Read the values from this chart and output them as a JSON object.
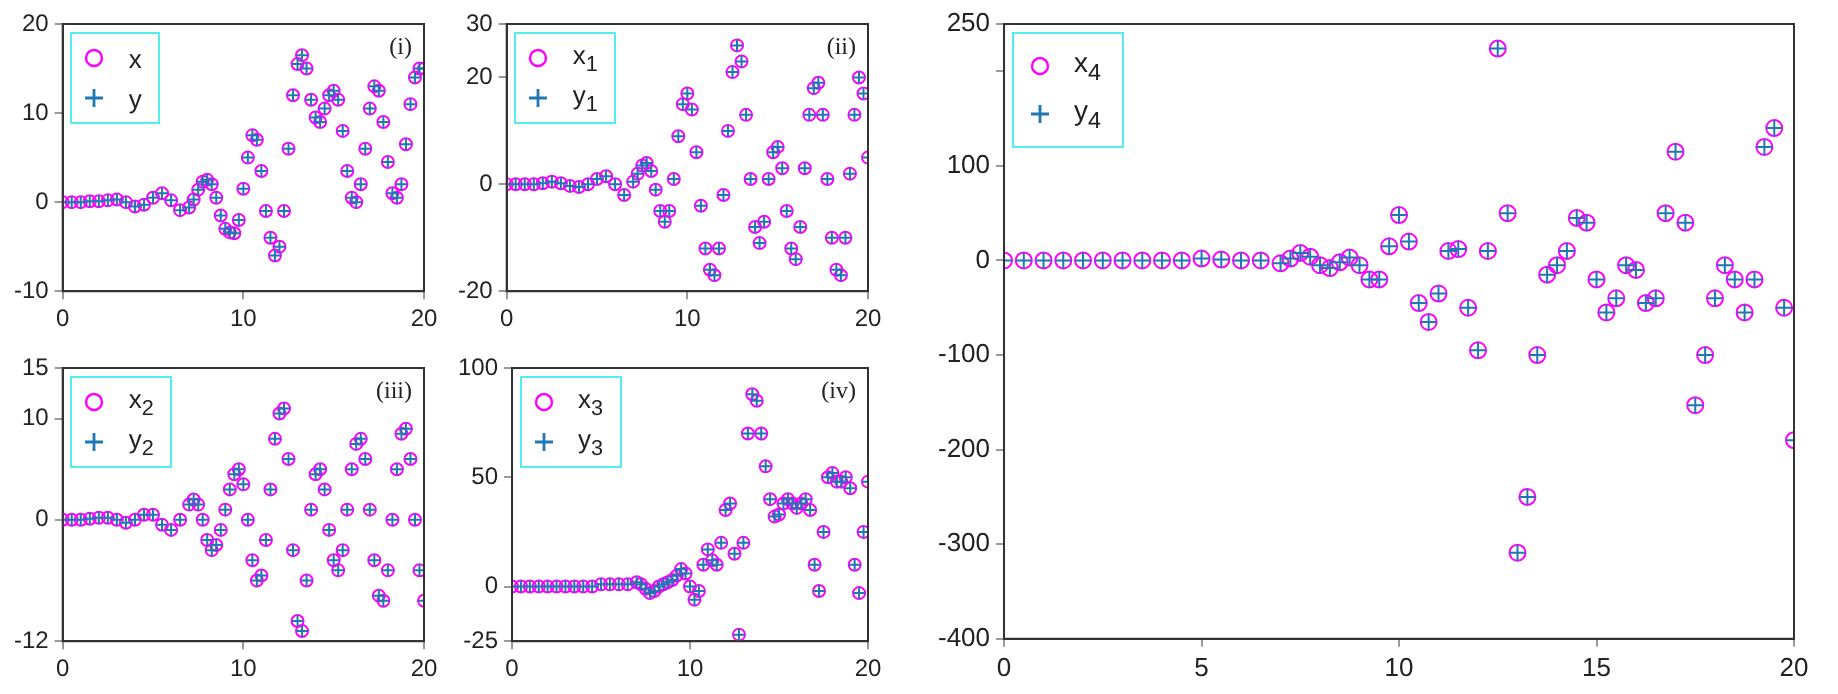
{
  "chart_data": [
    {
      "type": "scatter",
      "annotations": [
        "(i)"
      ],
      "legend": "top left",
      "grid": false,
      "xlim": [
        0,
        20
      ],
      "xticks": [
        0,
        10,
        20
      ],
      "ylim": [
        -10,
        20
      ],
      "yticks": [
        -10,
        0,
        10,
        20
      ],
      "x": [
        0,
        0.5,
        1,
        1.5,
        2,
        2.5,
        3,
        3.5,
        4,
        4.5,
        5,
        5.5,
        6,
        6.5,
        7,
        7.25,
        7.5,
        7.75,
        8,
        8.25,
        8.5,
        8.75,
        9,
        9.25,
        9.5,
        9.75,
        10,
        10.25,
        10.5,
        10.75,
        11,
        11.25,
        11.5,
        11.75,
        12,
        12.25,
        12.5,
        12.75,
        13,
        13.25,
        13.5,
        13.75,
        14,
        14.25,
        14.5,
        14.75,
        15,
        15.25,
        15.5,
        15.75,
        16,
        16.25,
        16.5,
        16.75,
        17,
        17.25,
        17.5,
        17.75,
        18,
        18.25,
        18.5,
        18.75,
        19,
        19.25,
        19.5,
        19.75,
        20
      ],
      "series": [
        {
          "name": "x",
          "color": "#ff00ff",
          "marker": "circle",
          "values": [
            0,
            0,
            0,
            0.1,
            0.1,
            0.2,
            0.3,
            0,
            -0.5,
            -0.3,
            0.5,
            1,
            0.2,
            -0.9,
            -0.6,
            0.3,
            1.4,
            2.3,
            2.5,
            2,
            0.5,
            -1.5,
            -3,
            -3.4,
            -3.5,
            -2,
            1.5,
            5,
            7.5,
            7,
            3.5,
            -1,
            -4,
            -6,
            -5,
            -1,
            6,
            12,
            15.5,
            16.5,
            15,
            11.5,
            9.5,
            9,
            10.5,
            12,
            12.5,
            11.5,
            8,
            3.5,
            0.5,
            0,
            2,
            6,
            10.5,
            13,
            12.5,
            9,
            4.5,
            1,
            0.5,
            2,
            6.5,
            11,
            14,
            15,
            15
          ]
        },
        {
          "name": "y",
          "color": "#1f77b4",
          "marker": "cross",
          "values": [
            0,
            0,
            0,
            0.1,
            0.1,
            0.2,
            0.3,
            0,
            -0.5,
            -0.3,
            0.5,
            1,
            0.2,
            -0.9,
            -0.6,
            0.3,
            1.4,
            2.3,
            2.5,
            2,
            0.5,
            -1.5,
            -3,
            -3.4,
            -3.5,
            -2,
            1.5,
            5,
            7.5,
            7,
            3.5,
            -1,
            -4,
            -6,
            -5,
            -1,
            6,
            12,
            15.5,
            16.5,
            15,
            11.5,
            9.5,
            9,
            10.5,
            12,
            12.5,
            11.5,
            8,
            3.5,
            0.5,
            0,
            2,
            6,
            10.5,
            13,
            12.5,
            9,
            4.5,
            1,
            0.5,
            2,
            6.5,
            11,
            14,
            15,
            15
          ]
        }
      ]
    },
    {
      "type": "scatter",
      "annotations": [
        "(ii)"
      ],
      "legend": "top left",
      "grid": false,
      "xlim": [
        0,
        20
      ],
      "xticks": [
        0,
        10,
        20
      ],
      "ylim": [
        -20,
        30
      ],
      "yticks": [
        -20,
        0,
        20,
        30
      ],
      "x": [
        0,
        0.5,
        1,
        1.5,
        2,
        2.5,
        3,
        3.5,
        4,
        4.5,
        5,
        5.5,
        6,
        6.5,
        7,
        7.25,
        7.5,
        7.75,
        8,
        8.25,
        8.5,
        8.75,
        9,
        9.25,
        9.5,
        9.75,
        10,
        10.25,
        10.5,
        10.75,
        11,
        11.25,
        11.5,
        11.75,
        12,
        12.25,
        12.5,
        12.75,
        13,
        13.25,
        13.5,
        13.75,
        14,
        14.25,
        14.5,
        14.75,
        15,
        15.25,
        15.5,
        15.75,
        16,
        16.25,
        16.5,
        16.75,
        17,
        17.25,
        17.5,
        17.75,
        18,
        18.25,
        18.5,
        18.75,
        19,
        19.25,
        19.5,
        19.75,
        20
      ],
      "series": [
        {
          "name": "x$_{1}$",
          "color": "#ff00ff",
          "marker": "circle",
          "values": [
            0,
            0,
            0,
            0,
            0.2,
            0.5,
            0.2,
            -0.3,
            -0.5,
            0,
            1,
            1.5,
            0,
            -2,
            0.5,
            2,
            3.5,
            4,
            2.5,
            -1,
            -5,
            -7,
            -5,
            1,
            9,
            15,
            17,
            14,
            6,
            -4,
            -12,
            -16,
            -17,
            -12,
            -2,
            10,
            21,
            26,
            23,
            13,
            1,
            -8,
            -11,
            -7,
            1,
            6,
            7,
            3,
            -5,
            -12,
            -14,
            -8,
            3,
            13,
            18,
            19,
            13,
            1,
            -10,
            -16,
            -17,
            -10,
            2,
            13,
            20,
            17,
            5
          ]
        },
        {
          "name": "y$_{1}$",
          "color": "#1f77b4",
          "marker": "cross",
          "values": [
            0,
            0,
            0,
            0,
            0.2,
            0.5,
            0.2,
            -0.3,
            -0.5,
            0,
            1,
            1.5,
            0,
            -2,
            0.5,
            2,
            3.5,
            4,
            2.5,
            -1,
            -5,
            -7,
            -5,
            1,
            9,
            15,
            17,
            14,
            6,
            -4,
            -12,
            -16,
            -17,
            -12,
            -2,
            10,
            21,
            26,
            23,
            13,
            1,
            -8,
            -11,
            -7,
            1,
            6,
            7,
            3,
            -5,
            -12,
            -14,
            -8,
            3,
            13,
            18,
            19,
            13,
            1,
            -10,
            -16,
            -17,
            -10,
            2,
            13,
            20,
            17,
            5
          ]
        }
      ]
    },
    {
      "type": "scatter",
      "annotations": [
        "(iii)"
      ],
      "legend": "top left",
      "grid": false,
      "xlim": [
        0,
        20
      ],
      "xticks": [
        0,
        10,
        20
      ],
      "ylim": [
        -12,
        15
      ],
      "yticks": [
        -12,
        0,
        10,
        15
      ],
      "x": [
        0,
        0.5,
        1,
        1.5,
        2,
        2.5,
        3,
        3.5,
        4,
        4.5,
        5,
        5.5,
        6,
        6.5,
        7,
        7.25,
        7.5,
        7.75,
        8,
        8.25,
        8.5,
        8.75,
        9,
        9.25,
        9.5,
        9.75,
        10,
        10.25,
        10.5,
        10.75,
        11,
        11.25,
        11.5,
        11.75,
        12,
        12.25,
        12.5,
        12.75,
        13,
        13.25,
        13.5,
        13.75,
        14,
        14.25,
        14.5,
        14.75,
        15,
        15.25,
        15.5,
        15.75,
        16,
        16.25,
        16.5,
        16.75,
        17,
        17.25,
        17.5,
        17.75,
        18,
        18.25,
        18.5,
        18.75,
        19,
        19.25,
        19.5,
        19.75,
        20
      ],
      "series": [
        {
          "name": "x$_{2}$",
          "color": "#ff00ff",
          "marker": "circle",
          "values": [
            0,
            0,
            0,
            0.1,
            0.2,
            0.2,
            0,
            -0.3,
            0,
            0.5,
            0.5,
            -0.5,
            -1,
            0,
            1.5,
            2,
            1.5,
            0,
            -2,
            -3,
            -2.5,
            -1,
            1,
            3,
            4.5,
            5,
            3.5,
            0,
            -4,
            -6,
            -5.5,
            -2,
            3,
            8,
            10.5,
            11,
            6,
            -3,
            -10,
            -11,
            -6,
            1,
            4.5,
            5,
            3,
            -1,
            -4,
            -5,
            -3,
            1,
            5,
            7.5,
            8,
            6,
            1,
            -4,
            -7.5,
            -8,
            -5,
            0,
            5,
            8.5,
            9,
            6,
            0,
            -5,
            -8
          ]
        },
        {
          "name": "y$_{2}$",
          "color": "#1f77b4",
          "marker": "cross",
          "values": [
            0,
            0,
            0,
            0.1,
            0.2,
            0.2,
            0,
            -0.3,
            0,
            0.5,
            0.5,
            -0.5,
            -1,
            0,
            1.5,
            2,
            1.5,
            0,
            -2,
            -3,
            -2.5,
            -1,
            1,
            3,
            4.5,
            5,
            3.5,
            0,
            -4,
            -6,
            -5.5,
            -2,
            3,
            8,
            10.5,
            11,
            6,
            -3,
            -10,
            -11,
            -6,
            1,
            4.5,
            5,
            3,
            -1,
            -4,
            -5,
            -3,
            1,
            5,
            7.5,
            8,
            6,
            1,
            -4,
            -7.5,
            -8,
            -5,
            0,
            5,
            8.5,
            9,
            6,
            0,
            -5,
            -8
          ]
        }
      ]
    },
    {
      "type": "scatter",
      "annotations": [
        "(iv)"
      ],
      "legend": "top left",
      "grid": false,
      "xlim": [
        0,
        20
      ],
      "xticks": [
        0,
        10,
        20
      ],
      "ylim": [
        -25,
        100
      ],
      "yticks": [
        -25,
        0,
        50,
        100
      ],
      "x": [
        0,
        0.5,
        1,
        1.5,
        2,
        2.5,
        3,
        3.5,
        4,
        4.5,
        5,
        5.5,
        6,
        6.5,
        7,
        7.25,
        7.5,
        7.75,
        8,
        8.25,
        8.5,
        8.75,
        9,
        9.25,
        9.5,
        9.75,
        10,
        10.25,
        10.5,
        10.75,
        11,
        11.25,
        11.5,
        11.75,
        12,
        12.25,
        12.5,
        12.75,
        13,
        13.25,
        13.5,
        13.75,
        14,
        14.25,
        14.5,
        14.75,
        15,
        15.25,
        15.5,
        15.75,
        16,
        16.25,
        16.5,
        16.75,
        17,
        17.25,
        17.5,
        17.75,
        18,
        18.25,
        18.5,
        18.75,
        19,
        19.25,
        19.5,
        19.75,
        20
      ],
      "series": [
        {
          "name": "x$_{3}$",
          "color": "#ff00ff",
          "marker": "circle",
          "values": [
            0,
            0,
            0,
            0,
            0,
            0,
            0,
            0,
            0,
            0,
            1,
            1,
            1,
            1,
            2,
            1,
            -1,
            -3,
            -2,
            0,
            1,
            2,
            3,
            5,
            8,
            6,
            0,
            -6,
            -2,
            10,
            17,
            12,
            10,
            20,
            35,
            38,
            15,
            -22,
            20,
            70,
            88,
            85,
            70,
            55,
            40,
            32,
            33,
            38,
            40,
            38,
            36,
            38,
            40,
            35,
            10,
            -2,
            25,
            50,
            52,
            48,
            48,
            50,
            45,
            10,
            -3,
            25,
            48
          ]
        },
        {
          "name": "y$_{3}$",
          "color": "#1f77b4",
          "marker": "cross",
          "values": [
            0,
            0,
            0,
            0,
            0,
            0,
            0,
            0,
            0,
            0,
            1,
            1,
            1,
            1,
            2,
            1,
            -1,
            -3,
            -2,
            0,
            1,
            2,
            3,
            5,
            8,
            6,
            0,
            -6,
            -2,
            10,
            17,
            12,
            10,
            20,
            35,
            38,
            15,
            -22,
            20,
            70,
            88,
            85,
            70,
            55,
            40,
            32,
            33,
            38,
            40,
            38,
            36,
            38,
            40,
            35,
            10,
            -2,
            25,
            50,
            52,
            48,
            48,
            50,
            45,
            10,
            -3,
            25,
            48
          ]
        }
      ]
    },
    {
      "type": "scatter",
      "legend": "top left",
      "grid": false,
      "xlim": [
        0,
        20
      ],
      "xticks": [
        0,
        5,
        10,
        15,
        20
      ],
      "ylim": [
        -400,
        250
      ],
      "yticks": [
        -400,
        -300,
        -200,
        -100,
        0,
        100,
        {
          "value": 200,
          "label": null
        },
        250
      ],
      "x": [
        0,
        0.5,
        1,
        1.5,
        2,
        2.5,
        3,
        3.5,
        4,
        4.5,
        5,
        5.5,
        6,
        6.5,
        7,
        7.25,
        7.5,
        7.75,
        8,
        8.25,
        8.5,
        8.75,
        9,
        9.25,
        9.5,
        9.75,
        10,
        10.25,
        10.5,
        10.75,
        11,
        11.25,
        11.5,
        11.75,
        12,
        12.25,
        12.5,
        12.75,
        13,
        13.25,
        13.5,
        13.75,
        14,
        14.25,
        14.5,
        14.75,
        15,
        15.25,
        15.5,
        15.75,
        16,
        16.25,
        16.5,
        16.75,
        17,
        17.25,
        17.5,
        17.75,
        18,
        18.25,
        18.5,
        18.75,
        19,
        19.25,
        19.5,
        19.75,
        20
      ],
      "series": [
        {
          "name": "x$_{4}$",
          "color": "#ff00ff",
          "marker": "circle",
          "values": [
            0,
            0,
            0,
            0,
            0,
            0,
            0,
            0,
            0,
            0,
            2,
            1,
            0,
            0,
            -3,
            2,
            8,
            4,
            -5,
            -8,
            -2,
            3,
            -5,
            -20,
            -20,
            15,
            48,
            20,
            -45,
            -65,
            -35,
            10,
            12,
            -50,
            -95,
            10,
            224,
            50,
            -309,
            -250,
            -100,
            -15,
            -5,
            10,
            45,
            40,
            -20,
            -55,
            -40,
            -5,
            -10,
            -45,
            -40,
            50,
            115,
            40,
            -153,
            -100,
            -40,
            -5,
            -20,
            -55,
            -20,
            120,
            140,
            -50,
            -190
          ]
        },
        {
          "name": "y$_{4}$",
          "color": "#1f77b4",
          "marker": "cross",
          "values": [
            0,
            0,
            0,
            0,
            0,
            0,
            0,
            0,
            0,
            0,
            2,
            1,
            0,
            0,
            -3,
            2,
            8,
            4,
            -5,
            -8,
            -2,
            3,
            -5,
            -20,
            -20,
            15,
            48,
            20,
            -45,
            -65,
            -35,
            10,
            12,
            -50,
            -95,
            10,
            224,
            50,
            -309,
            -250,
            -100,
            -15,
            -5,
            10,
            45,
            40,
            -20,
            -55,
            -40,
            -5,
            -10,
            -45,
            -40,
            50,
            115,
            40,
            -153,
            -100,
            -40,
            -5,
            -20,
            -55,
            -20,
            120,
            140,
            -50,
            -190
          ]
        }
      ]
    }
  ]
}
